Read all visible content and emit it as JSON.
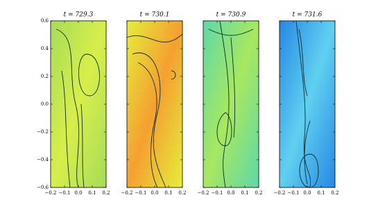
{
  "chart_data": [
    {
      "type": "heatmap",
      "title": "t = 729.3",
      "color": "#a6dc5a",
      "accent": "#d8ee4a",
      "xlim": [
        -0.2,
        0.2
      ],
      "ylim": [
        -0.6,
        0.6
      ],
      "xticks": [
        {
          "value": -0.2,
          "label": "−0.2"
        },
        {
          "value": -0.1,
          "label": "−0.1"
        },
        {
          "value": 0,
          "label": "0.0"
        },
        0.1,
        0.2
      ],
      "yticks": [
        {
          "value": -0.6,
          "label": "−0.6"
        },
        {
          "value": -0.4,
          "label": "−0.4"
        },
        {
          "value": -0.2,
          "label": "−0.2"
        },
        {
          "value": 0,
          "label": "0.0"
        },
        0.2,
        0.4,
        0.6
      ]
    },
    {
      "type": "heatmap",
      "title": "t = 730.1",
      "color": "#e4ee3c",
      "accent": "#f4a030",
      "xlim": [
        -0.2,
        0.2
      ],
      "ylim": [
        -0.6,
        0.6
      ],
      "xticks": [
        {
          "value": -0.2,
          "label": "−0.2"
        },
        {
          "value": -0.1,
          "label": "−0.1"
        },
        {
          "value": 0,
          "label": "0.0"
        },
        0.1,
        0.2
      ],
      "yticks": [
        -0.6,
        -0.4,
        -0.2,
        0,
        0.2,
        0.4,
        0.6
      ]
    },
    {
      "type": "heatmap",
      "title": "t = 730.9",
      "color": "#5ed8a8",
      "accent": "#a8e860",
      "xlim": [
        -0.2,
        0.2
      ],
      "ylim": [
        -0.6,
        0.6
      ],
      "xticks": [
        {
          "value": -0.2,
          "label": "−0.2"
        },
        {
          "value": -0.1,
          "label": "−0.1"
        },
        {
          "value": 0,
          "label": "0.0"
        },
        0.1,
        0.2
      ],
      "yticks": [
        -0.6,
        -0.4,
        -0.2,
        0,
        0.2,
        0.4,
        0.6
      ]
    },
    {
      "type": "heatmap",
      "title": "t = 731.6",
      "color": "#2688e4",
      "accent": "#60d0f0",
      "xlim": [
        -0.2,
        0.2
      ],
      "ylim": [
        -0.6,
        0.6
      ],
      "xticks": [
        {
          "value": -0.2,
          "label": "−0.2"
        },
        {
          "value": -0.1,
          "label": "−0.1"
        },
        {
          "value": 0,
          "label": "0.0"
        },
        0.1,
        0.2
      ],
      "yticks": [
        -0.6,
        -0.4,
        -0.2,
        0,
        0.2,
        0.4,
        0.6
      ]
    }
  ]
}
